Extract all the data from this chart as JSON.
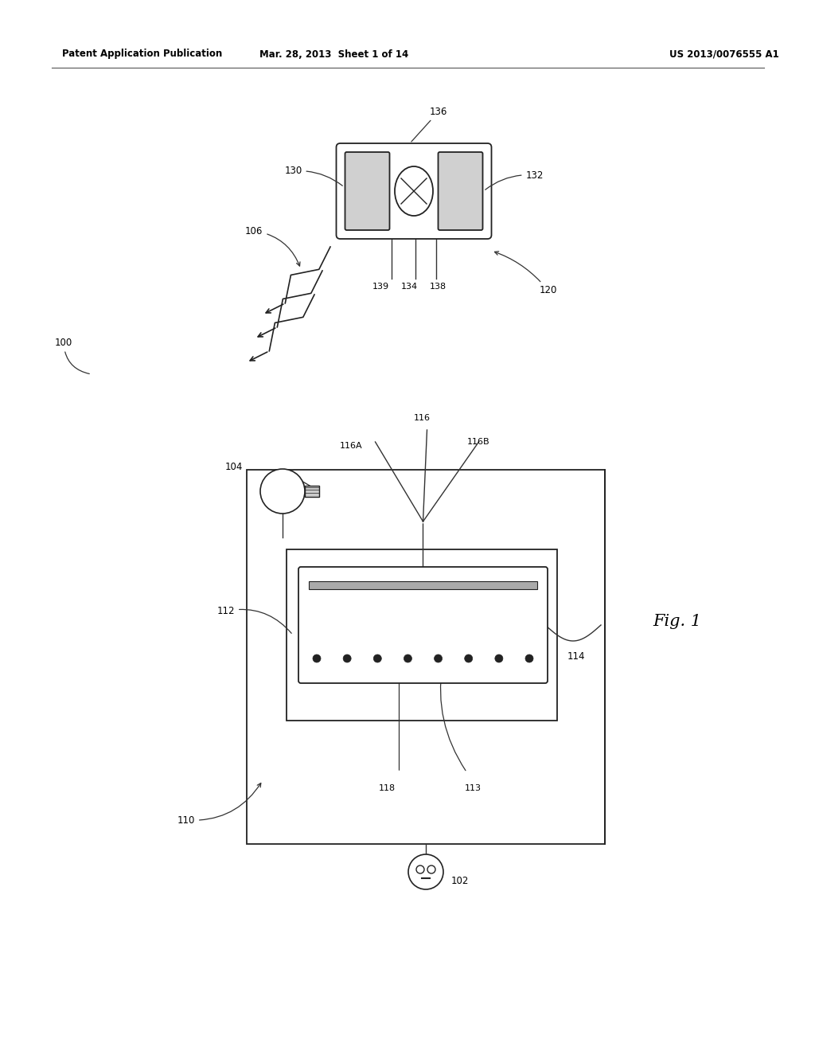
{
  "bg_color": "#ffffff",
  "header_left": "Patent Application Publication",
  "header_mid": "Mar. 28, 2013  Sheet 1 of 14",
  "header_right": "US 2013/0076555 A1",
  "fig_label": "Fig. 1",
  "label_100": "100",
  "label_102": "102",
  "label_104": "104",
  "label_106": "106",
  "label_110": "110",
  "label_112": "112",
  "label_113": "113",
  "label_114": "114",
  "label_116": "116",
  "label_116A": "116A",
  "label_116B": "116B",
  "label_118": "118",
  "label_120": "120",
  "label_130": "130",
  "label_132": "132",
  "label_134": "134",
  "label_136": "136",
  "label_138": "138",
  "label_139": "139"
}
